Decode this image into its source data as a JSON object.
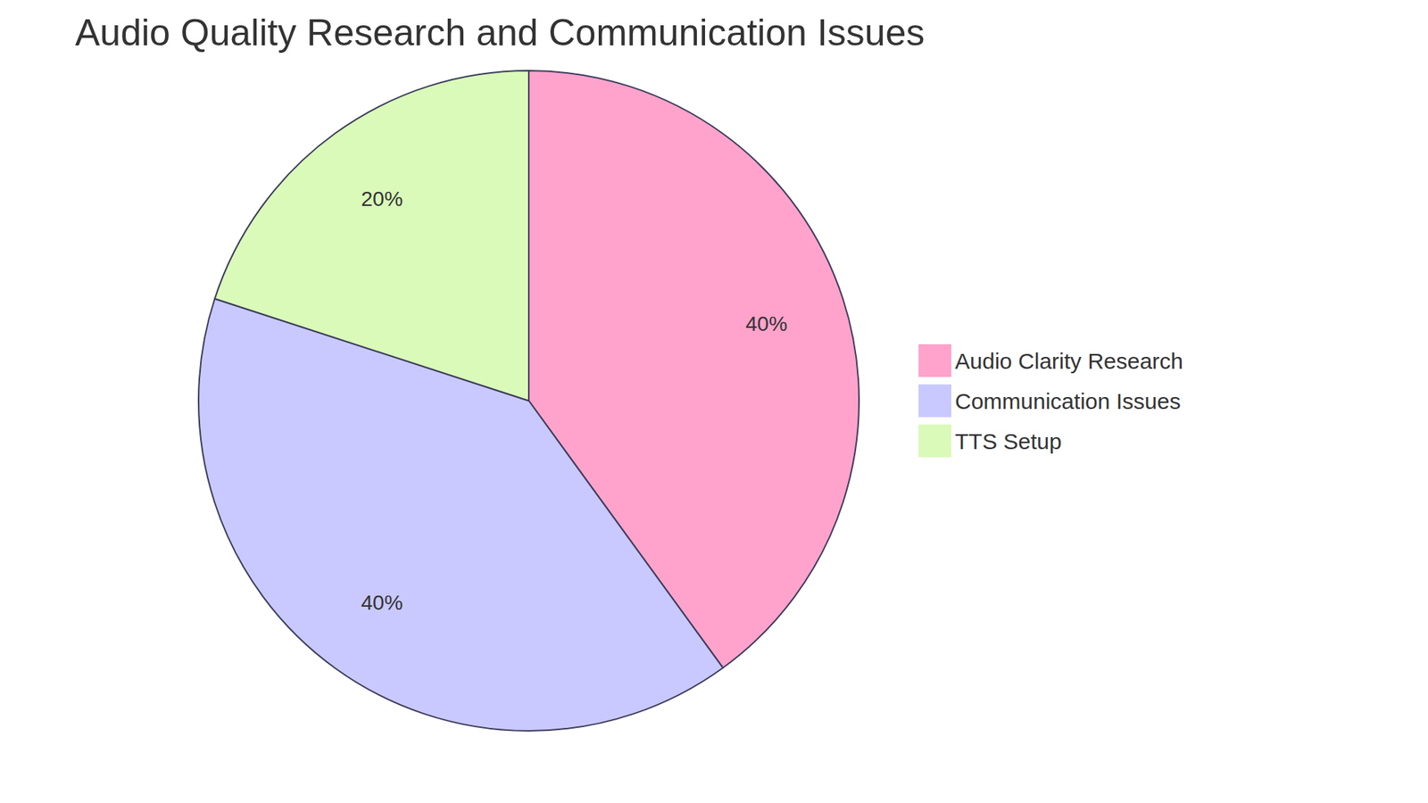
{
  "chart_data": {
    "type": "pie",
    "title": "Audio Quality Research and Communication Issues",
    "categories": [
      "Audio Clarity Research",
      "Communication Issues",
      "TTS Setup"
    ],
    "values": [
      40,
      40,
      20
    ],
    "value_labels": [
      "40%",
      "40%",
      "20%"
    ],
    "colors": [
      "#ffa3cc",
      "#c9c9ff",
      "#dafab9"
    ],
    "data_labels": true,
    "legend": "right"
  }
}
